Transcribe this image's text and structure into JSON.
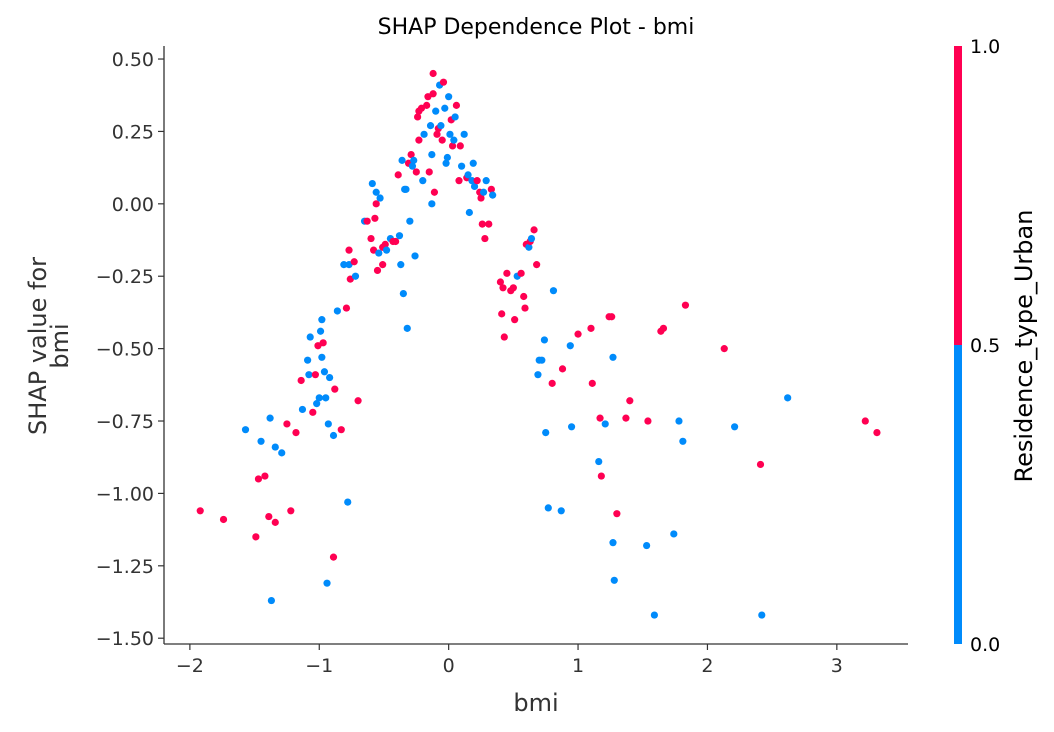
{
  "chart_data": {
    "type": "scatter",
    "title": "SHAP Dependence Plot - bmi",
    "xlabel": "bmi",
    "ylabel_lines": [
      "SHAP value for",
      "bmi"
    ],
    "xlim": [
      -2.2,
      3.55
    ],
    "ylim": [
      -1.52,
      0.545
    ],
    "xticks": [
      -2,
      -1,
      0,
      1,
      2,
      3
    ],
    "xtick_labels": [
      "−2",
      "−1",
      "0",
      "1",
      "2",
      "3"
    ],
    "yticks": [
      0.5,
      0.25,
      0.0,
      -0.25,
      -0.5,
      -0.75,
      -1.0,
      -1.25,
      -1.5
    ],
    "ytick_labels": [
      "0.50",
      "0.25",
      "0.00",
      "−0.25",
      "−0.50",
      "−0.75",
      "−1.00",
      "−1.25",
      "−1.50"
    ],
    "grid": false,
    "colorbar": {
      "label": "Residence_type_Urban",
      "ticks": [
        1.0,
        0.5,
        0.0
      ],
      "tick_labels": [
        "1.0",
        "0.5",
        "0.0"
      ],
      "low_color": "#008bfb",
      "high_color": "#ff0052"
    },
    "colors": {
      "0": "#008bfb",
      "1": "#ff0052",
      "axis": "#333333"
    },
    "points": [
      [
        -1.92,
        -1.06,
        1
      ],
      [
        -1.74,
        -1.09,
        1
      ],
      [
        -1.57,
        -0.78,
        0
      ],
      [
        -1.49,
        -1.15,
        1
      ],
      [
        -1.47,
        -0.95,
        1
      ],
      [
        -1.45,
        -0.82,
        0
      ],
      [
        -1.42,
        -0.94,
        1
      ],
      [
        -1.39,
        -1.08,
        1
      ],
      [
        -1.38,
        -0.74,
        0
      ],
      [
        -1.37,
        -1.37,
        0
      ],
      [
        -1.34,
        -0.84,
        0
      ],
      [
        -1.34,
        -1.1,
        1
      ],
      [
        -1.29,
        -0.86,
        0
      ],
      [
        -1.25,
        -0.76,
        1
      ],
      [
        -1.22,
        -1.06,
        1
      ],
      [
        -1.18,
        -0.79,
        1
      ],
      [
        -1.14,
        -0.61,
        1
      ],
      [
        -1.13,
        -0.71,
        0
      ],
      [
        -1.09,
        -0.54,
        0
      ],
      [
        -1.08,
        -0.59,
        0
      ],
      [
        -1.07,
        -0.46,
        0
      ],
      [
        -1.05,
        -0.72,
        1
      ],
      [
        -1.03,
        -0.59,
        1
      ],
      [
        -1.02,
        -0.69,
        0
      ],
      [
        -1.01,
        -0.49,
        1
      ],
      [
        -1.0,
        -0.67,
        0
      ],
      [
        -0.99,
        -0.44,
        0
      ],
      [
        -0.98,
        -0.53,
        0
      ],
      [
        -0.98,
        -0.4,
        0
      ],
      [
        -0.97,
        -0.48,
        1
      ],
      [
        -0.96,
        -0.58,
        0
      ],
      [
        -0.95,
        -0.67,
        0
      ],
      [
        -0.94,
        -1.31,
        0
      ],
      [
        -0.93,
        -0.76,
        0
      ],
      [
        -0.92,
        -0.6,
        0
      ],
      [
        -0.89,
        -0.8,
        0
      ],
      [
        -0.89,
        -1.22,
        1
      ],
      [
        -0.88,
        -0.64,
        1
      ],
      [
        -0.86,
        -0.37,
        0
      ],
      [
        -0.83,
        -0.78,
        1
      ],
      [
        -0.81,
        -0.21,
        0
      ],
      [
        -0.79,
        -0.36,
        1
      ],
      [
        -0.78,
        -1.03,
        0
      ],
      [
        -0.77,
        -0.21,
        0
      ],
      [
        -0.77,
        -0.16,
        1
      ],
      [
        -0.76,
        -0.26,
        1
      ],
      [
        -0.73,
        -0.2,
        1
      ],
      [
        -0.72,
        -0.25,
        0
      ],
      [
        -0.7,
        -0.68,
        1
      ],
      [
        -0.65,
        -0.06,
        0
      ],
      [
        -0.63,
        -0.06,
        1
      ],
      [
        -0.6,
        -0.12,
        1
      ],
      [
        -0.59,
        0.07,
        0
      ],
      [
        -0.58,
        -0.16,
        1
      ],
      [
        -0.57,
        -0.05,
        1
      ],
      [
        -0.56,
        0.04,
        0
      ],
      [
        -0.56,
        0.0,
        1
      ],
      [
        -0.55,
        -0.23,
        1
      ],
      [
        -0.54,
        -0.17,
        0
      ],
      [
        -0.53,
        0.02,
        0
      ],
      [
        -0.51,
        -0.15,
        1
      ],
      [
        -0.51,
        -0.21,
        1
      ],
      [
        -0.49,
        -0.14,
        1
      ],
      [
        -0.48,
        -0.16,
        0
      ],
      [
        -0.45,
        -0.12,
        0
      ],
      [
        -0.43,
        -0.13,
        1
      ],
      [
        -0.41,
        -0.13,
        1
      ],
      [
        -0.39,
        0.1,
        1
      ],
      [
        -0.38,
        -0.11,
        0
      ],
      [
        -0.37,
        -0.21,
        0
      ],
      [
        -0.36,
        0.15,
        0
      ],
      [
        -0.35,
        -0.31,
        0
      ],
      [
        -0.34,
        0.05,
        0
      ],
      [
        -0.33,
        0.05,
        0
      ],
      [
        -0.32,
        -0.43,
        0
      ],
      [
        -0.31,
        0.14,
        1
      ],
      [
        -0.3,
        -0.06,
        0
      ],
      [
        -0.29,
        0.17,
        1
      ],
      [
        -0.28,
        0.13,
        0
      ],
      [
        -0.27,
        0.15,
        0
      ],
      [
        -0.26,
        -0.18,
        0
      ],
      [
        -0.25,
        0.11,
        1
      ],
      [
        -0.24,
        0.3,
        1
      ],
      [
        -0.23,
        0.22,
        1
      ],
      [
        -0.23,
        0.32,
        1
      ],
      [
        -0.21,
        0.33,
        1
      ],
      [
        -0.2,
        0.08,
        0
      ],
      [
        -0.19,
        0.24,
        0
      ],
      [
        -0.17,
        0.34,
        1
      ],
      [
        -0.16,
        0.37,
        1
      ],
      [
        -0.15,
        0.11,
        1
      ],
      [
        -0.14,
        0.27,
        0
      ],
      [
        -0.13,
        0.17,
        0
      ],
      [
        -0.13,
        0.0,
        0
      ],
      [
        -0.12,
        0.38,
        1
      ],
      [
        -0.12,
        0.45,
        1
      ],
      [
        -0.11,
        0.04,
        1
      ],
      [
        -0.1,
        0.32,
        0
      ],
      [
        -0.09,
        0.24,
        1
      ],
      [
        -0.08,
        0.26,
        1
      ],
      [
        -0.07,
        0.41,
        0
      ],
      [
        -0.06,
        0.27,
        0
      ],
      [
        -0.05,
        0.22,
        1
      ],
      [
        -0.04,
        0.42,
        1
      ],
      [
        -0.03,
        0.33,
        0
      ],
      [
        -0.02,
        0.14,
        0
      ],
      [
        -0.01,
        0.16,
        0
      ],
      [
        0.0,
        0.37,
        0
      ],
      [
        0.01,
        0.24,
        0
      ],
      [
        0.02,
        0.29,
        1
      ],
      [
        0.03,
        0.2,
        1
      ],
      [
        0.04,
        0.22,
        0
      ],
      [
        0.05,
        0.3,
        0
      ],
      [
        0.06,
        0.34,
        1
      ],
      [
        0.08,
        0.08,
        1
      ],
      [
        0.09,
        0.2,
        1
      ],
      [
        0.1,
        0.13,
        0
      ],
      [
        0.12,
        0.24,
        0
      ],
      [
        0.14,
        0.09,
        1
      ],
      [
        0.15,
        0.1,
        0
      ],
      [
        0.16,
        -0.03,
        0
      ],
      [
        0.18,
        0.08,
        0
      ],
      [
        0.19,
        0.14,
        0
      ],
      [
        0.2,
        0.06,
        0
      ],
      [
        0.22,
        0.08,
        1
      ],
      [
        0.24,
        0.04,
        1
      ],
      [
        0.25,
        0.02,
        1
      ],
      [
        0.26,
        -0.07,
        1
      ],
      [
        0.27,
        0.04,
        0
      ],
      [
        0.28,
        -0.12,
        1
      ],
      [
        0.29,
        0.08,
        0
      ],
      [
        0.31,
        -0.07,
        1
      ],
      [
        0.33,
        0.05,
        1
      ],
      [
        0.34,
        0.03,
        0
      ],
      [
        0.4,
        -0.27,
        1
      ],
      [
        0.41,
        -0.38,
        1
      ],
      [
        0.42,
        -0.29,
        1
      ],
      [
        0.43,
        -0.46,
        1
      ],
      [
        0.45,
        -0.24,
        1
      ],
      [
        0.48,
        -0.3,
        1
      ],
      [
        0.5,
        -0.29,
        1
      ],
      [
        0.51,
        -0.4,
        1
      ],
      [
        0.53,
        -0.25,
        0
      ],
      [
        0.56,
        -0.24,
        1
      ],
      [
        0.58,
        -0.32,
        1
      ],
      [
        0.59,
        -0.36,
        1
      ],
      [
        0.6,
        -0.14,
        1
      ],
      [
        0.62,
        -0.15,
        0
      ],
      [
        0.63,
        -0.13,
        1
      ],
      [
        0.64,
        -0.12,
        0
      ],
      [
        0.66,
        -0.09,
        1
      ],
      [
        0.68,
        -0.21,
        1
      ],
      [
        0.69,
        -0.59,
        0
      ],
      [
        0.7,
        -0.54,
        0
      ],
      [
        0.72,
        -0.54,
        0
      ],
      [
        0.74,
        -0.47,
        0
      ],
      [
        0.75,
        -0.79,
        0
      ],
      [
        0.77,
        -1.05,
        0
      ],
      [
        0.8,
        -0.62,
        1
      ],
      [
        0.81,
        -0.3,
        0
      ],
      [
        0.87,
        -1.06,
        0
      ],
      [
        0.88,
        -0.57,
        1
      ],
      [
        0.94,
        -0.49,
        0
      ],
      [
        0.95,
        -0.77,
        0
      ],
      [
        1.0,
        -0.45,
        1
      ],
      [
        1.1,
        -0.43,
        1
      ],
      [
        1.11,
        -0.62,
        1
      ],
      [
        1.16,
        -0.89,
        0
      ],
      [
        1.17,
        -0.74,
        1
      ],
      [
        1.18,
        -0.94,
        1
      ],
      [
        1.21,
        -0.76,
        0
      ],
      [
        1.24,
        -0.39,
        1
      ],
      [
        1.26,
        -0.39,
        1
      ],
      [
        1.27,
        -0.53,
        0
      ],
      [
        1.27,
        -1.17,
        0
      ],
      [
        1.28,
        -1.3,
        0
      ],
      [
        1.3,
        -1.07,
        1
      ],
      [
        1.37,
        -0.74,
        1
      ],
      [
        1.4,
        -0.68,
        1
      ],
      [
        1.53,
        -1.18,
        0
      ],
      [
        1.54,
        -0.75,
        1
      ],
      [
        1.59,
        -1.42,
        0
      ],
      [
        1.64,
        -0.44,
        1
      ],
      [
        1.66,
        -0.43,
        1
      ],
      [
        1.74,
        -1.14,
        0
      ],
      [
        1.78,
        -0.75,
        0
      ],
      [
        1.81,
        -0.82,
        0
      ],
      [
        1.83,
        -0.35,
        1
      ],
      [
        2.13,
        -0.5,
        1
      ],
      [
        2.21,
        -0.77,
        0
      ],
      [
        2.41,
        -0.9,
        1
      ],
      [
        2.42,
        -1.42,
        0
      ],
      [
        2.62,
        -0.67,
        0
      ],
      [
        3.22,
        -0.75,
        1
      ],
      [
        3.31,
        -0.79,
        1
      ]
    ]
  }
}
